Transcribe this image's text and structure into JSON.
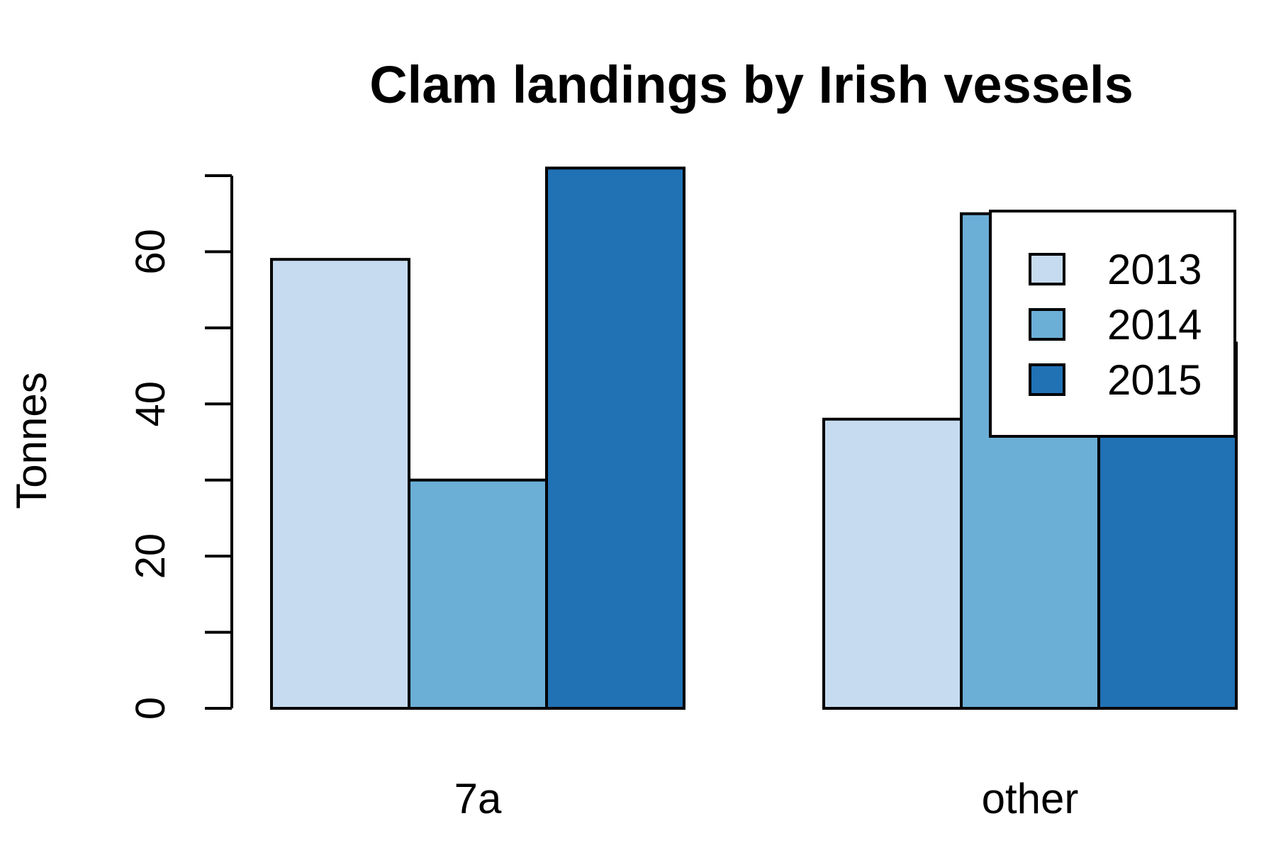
{
  "chart_data": {
    "type": "bar",
    "title": "Clam landings by Irish vessels",
    "xlabel": "",
    "ylabel": "Tonnes",
    "categories": [
      "7a",
      "other"
    ],
    "series": [
      {
        "name": "2013",
        "values": [
          59,
          38
        ],
        "color": "#C6DBEF"
      },
      {
        "name": "2014",
        "values": [
          30,
          65
        ],
        "color": "#6BAED6"
      },
      {
        "name": "2015",
        "values": [
          71,
          48
        ],
        "color": "#2171B5"
      }
    ],
    "ylim": [
      0,
      70
    ],
    "y_ticks": [
      0,
      10,
      20,
      30,
      40,
      50,
      60,
      70
    ],
    "y_tick_labels": [
      "0",
      "",
      "20",
      "",
      "40",
      "",
      "60",
      ""
    ],
    "grid": false,
    "legend_position": "top-right"
  }
}
